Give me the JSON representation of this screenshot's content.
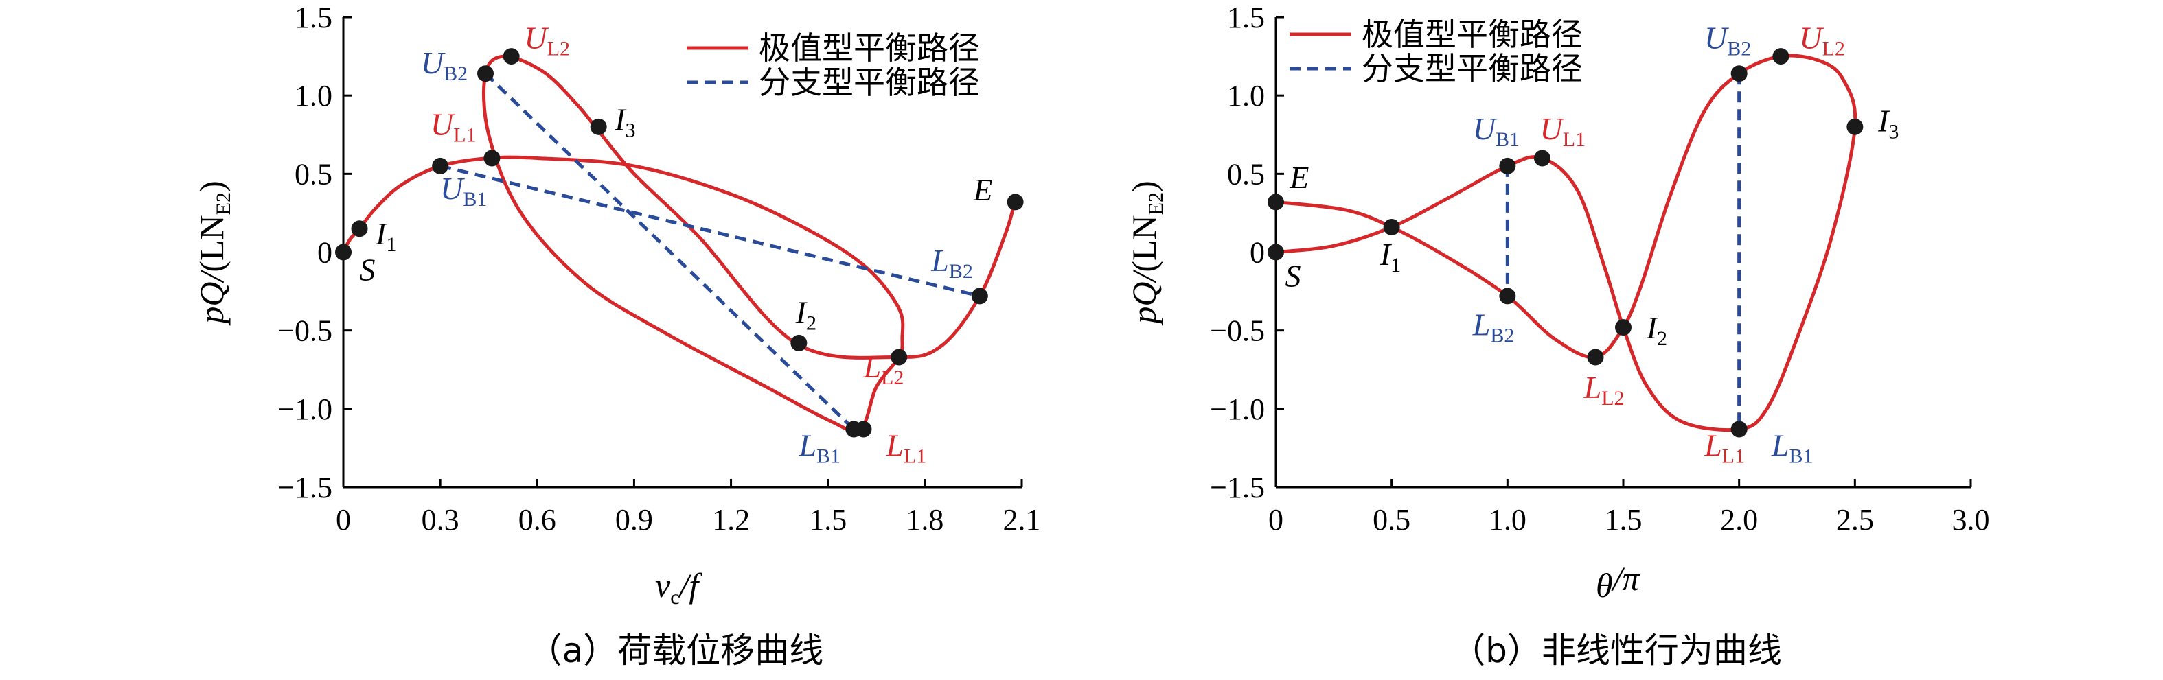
{
  "chart_data": [
    {
      "type": "line",
      "caption": "（a）荷载位移曲线",
      "xlabel_main": "v",
      "xlabel_sub": "c",
      "xlabel_tail": "/f",
      "ylabel_main": "pQ/",
      "ylabel_paren": "(LN",
      "ylabel_sub": "E2",
      "ylabel_close": ")",
      "xlim": [
        0,
        2.1
      ],
      "ylim": [
        -1.5,
        1.5
      ],
      "xticks": [
        "0",
        "0.3",
        "0.6",
        "0.9",
        "1.2",
        "1.5",
        "1.8",
        "2.1"
      ],
      "yticks": [
        "1.5",
        "1.0",
        "0.5",
        "0",
        "−0.5",
        "−1.0",
        "−1.5"
      ],
      "legend": [
        "极值型平衡路径",
        "分支型平衡路径"
      ],
      "series": [
        {
          "name": "极值型平衡路径",
          "style": "solid",
          "points": [
            [
              0,
              0
            ],
            [
              0.02,
              0.08
            ],
            [
              0.05,
              0.15
            ],
            [
              0.1,
              0.28
            ],
            [
              0.18,
              0.43
            ],
            [
              0.3,
              0.55
            ],
            [
              0.45,
              0.6
            ],
            [
              0.6,
              0.6
            ],
            [
              0.9,
              0.55
            ],
            [
              1.2,
              0.37
            ],
            [
              1.45,
              0.13
            ],
            [
              1.62,
              -0.1
            ],
            [
              1.72,
              -0.36
            ],
            [
              1.73,
              -0.55
            ],
            [
              1.72,
              -0.67
            ],
            [
              1.65,
              -0.86
            ],
            [
              1.6,
              -1.13
            ],
            [
              1.5,
              -1.07
            ],
            [
              1.3,
              -0.85
            ],
            [
              1.0,
              -0.52
            ],
            [
              0.75,
              -0.2
            ],
            [
              0.55,
              0.25
            ],
            [
              0.45,
              0.75
            ],
            [
              0.44,
              1.14
            ],
            [
              0.5,
              1.25
            ],
            [
              0.62,
              1.15
            ],
            [
              0.72,
              0.95
            ],
            [
              0.78,
              0.8
            ],
            [
              0.9,
              0.5
            ],
            [
              1.1,
              0.1
            ],
            [
              1.4,
              -0.58
            ],
            [
              1.71,
              -0.67
            ],
            [
              1.85,
              -0.6
            ],
            [
              1.97,
              -0.28
            ],
            [
              2.05,
              0.12
            ],
            [
              2.08,
              0.32
            ],
            [
              2.1,
              0.35
            ]
          ]
        },
        {
          "name": "分支型平衡路径",
          "style": "dashed",
          "segments": [
            [
              [
                0.3,
                0.55
              ],
              [
                1.97,
                -0.28
              ]
            ],
            [
              [
                0.44,
                1.14
              ],
              [
                1.58,
                -1.13
              ]
            ]
          ]
        }
      ],
      "markers": [
        [
          0,
          0
        ],
        [
          0.05,
          0.15
        ],
        [
          0.3,
          0.55
        ],
        [
          0.46,
          0.6
        ],
        [
          0.44,
          1.14
        ],
        [
          0.52,
          1.25
        ],
        [
          0.79,
          0.8
        ],
        [
          1.41,
          -0.58
        ],
        [
          1.72,
          -0.67
        ],
        [
          1.97,
          -0.28
        ],
        [
          2.08,
          0.32
        ],
        [
          1.58,
          -1.13
        ],
        [
          1.61,
          -1.13
        ]
      ],
      "labels": [
        {
          "main": "U",
          "sub": "L2",
          "x": 0.56,
          "y": 1.3,
          "color": "#d6282b"
        },
        {
          "main": "U",
          "sub": "B2",
          "x": 0.24,
          "y": 1.14,
          "color": "#2a4a9a"
        },
        {
          "main": "I",
          "sub": "3",
          "x": 0.84,
          "y": 0.78,
          "color": "#000000"
        },
        {
          "main": "U",
          "sub": "L1",
          "x": 0.27,
          "y": 0.75,
          "color": "#d6282b"
        },
        {
          "main": "U",
          "sub": "B1",
          "x": 0.3,
          "y": 0.34,
          "color": "#2a4a9a"
        },
        {
          "main": "I",
          "sub": "1",
          "x": 0.1,
          "y": 0.05,
          "color": "#000000"
        },
        {
          "main": "S",
          "sub": "",
          "x": 0.05,
          "y": -0.18,
          "color": "#000000"
        },
        {
          "main": "E",
          "sub": "",
          "x": 1.95,
          "y": 0.33,
          "color": "#000000"
        },
        {
          "main": "L",
          "sub": "B2",
          "x": 1.82,
          "y": -0.12,
          "color": "#2a4a9a"
        },
        {
          "main": "I",
          "sub": "2",
          "x": 1.4,
          "y": -0.45,
          "color": "#000000"
        },
        {
          "main": "L",
          "sub": "L2",
          "x": 1.61,
          "y": -0.8,
          "color": "#d6282b"
        },
        {
          "main": "L",
          "sub": "B1",
          "x": 1.41,
          "y": -1.3,
          "color": "#2a4a9a"
        },
        {
          "main": "L",
          "sub": "L1",
          "x": 1.68,
          "y": -1.3,
          "color": "#d6282b"
        }
      ]
    },
    {
      "type": "line",
      "caption": "（b）非线性行为曲线",
      "xlabel_main": "θ",
      "xlabel_sub": "",
      "xlabel_tail": "/π",
      "ylabel_main": "pQ/",
      "ylabel_paren": "(LN",
      "ylabel_sub": "E2",
      "ylabel_close": ")",
      "xlim": [
        0,
        3.0
      ],
      "ylim": [
        -1.5,
        1.5
      ],
      "xticks": [
        "0",
        "0.5",
        "1.0",
        "1.5",
        "2.0",
        "2.5",
        "3.0"
      ],
      "yticks": [
        "1.5",
        "1.0",
        "0.5",
        "0",
        "−0.5",
        "−1.0",
        "−1.5"
      ],
      "legend": [
        "极值型平衡路径",
        "分支型平衡路径"
      ],
      "series": [
        {
          "name": "极值型平衡路径",
          "style": "solid",
          "points": [
            [
              0,
              0
            ],
            [
              0.25,
              0.04
            ],
            [
              0.5,
              0.16
            ],
            [
              0.75,
              0.35
            ],
            [
              1.0,
              0.55
            ],
            [
              1.15,
              0.6
            ],
            [
              1.3,
              0.4
            ],
            [
              1.42,
              -0.1
            ],
            [
              1.5,
              -0.48
            ],
            [
              1.6,
              -0.85
            ],
            [
              1.75,
              -1.08
            ],
            [
              2.0,
              -1.13
            ],
            [
              2.12,
              -1.0
            ],
            [
              2.25,
              -0.55
            ],
            [
              2.4,
              0.1
            ],
            [
              2.5,
              0.8
            ],
            [
              2.45,
              1.1
            ],
            [
              2.35,
              1.22
            ],
            [
              2.18,
              1.25
            ],
            [
              2.0,
              1.14
            ],
            [
              1.85,
              0.9
            ],
            [
              1.7,
              0.35
            ],
            [
              1.58,
              -0.2
            ],
            [
              1.5,
              -0.48
            ],
            [
              1.38,
              -0.67
            ],
            [
              1.2,
              -0.55
            ],
            [
              1.0,
              -0.28
            ],
            [
              0.75,
              -0.04
            ],
            [
              0.5,
              0.16
            ],
            [
              0.3,
              0.27
            ],
            [
              0,
              0.32
            ]
          ]
        },
        {
          "name": "分支型平衡路径",
          "style": "dashed",
          "segments": [
            [
              [
                1.0,
                0.55
              ],
              [
                1.0,
                -0.28
              ]
            ],
            [
              [
                2.0,
                1.14
              ],
              [
                2.0,
                -1.13
              ]
            ]
          ]
        }
      ],
      "markers": [
        [
          0,
          0
        ],
        [
          0,
          0.32
        ],
        [
          0.5,
          0.16
        ],
        [
          1.0,
          0.55
        ],
        [
          1.15,
          0.6
        ],
        [
          1.0,
          -0.28
        ],
        [
          1.5,
          -0.48
        ],
        [
          1.38,
          -0.67
        ],
        [
          2.0,
          -1.13
        ],
        [
          2.0,
          1.14
        ],
        [
          2.18,
          1.25
        ],
        [
          2.5,
          0.8
        ]
      ],
      "labels": [
        {
          "main": "E",
          "sub": "",
          "x": 0.06,
          "y": 0.41,
          "color": "#000000"
        },
        {
          "main": "S",
          "sub": "",
          "x": 0.04,
          "y": -0.22,
          "color": "#000000"
        },
        {
          "main": "I",
          "sub": "1",
          "x": 0.45,
          "y": -0.08,
          "color": "#000000"
        },
        {
          "main": "U",
          "sub": "B1",
          "x": 0.85,
          "y": 0.72,
          "color": "#2a4a9a"
        },
        {
          "main": "U",
          "sub": "L1",
          "x": 1.14,
          "y": 0.72,
          "color": "#d6282b"
        },
        {
          "main": "L",
          "sub": "B2",
          "x": 0.85,
          "y": -0.53,
          "color": "#2a4a9a"
        },
        {
          "main": "I",
          "sub": "2",
          "x": 1.6,
          "y": -0.55,
          "color": "#000000"
        },
        {
          "main": "L",
          "sub": "L2",
          "x": 1.33,
          "y": -0.93,
          "color": "#d6282b"
        },
        {
          "main": "L",
          "sub": "L1",
          "x": 1.85,
          "y": -1.3,
          "color": "#d6282b"
        },
        {
          "main": "L",
          "sub": "B1",
          "x": 2.14,
          "y": -1.3,
          "color": "#2a4a9a"
        },
        {
          "main": "U",
          "sub": "B2",
          "x": 1.85,
          "y": 1.3,
          "color": "#2a4a9a"
        },
        {
          "main": "U",
          "sub": "L2",
          "x": 2.26,
          "y": 1.3,
          "color": "#d6282b"
        },
        {
          "main": "I",
          "sub": "3",
          "x": 2.6,
          "y": 0.77,
          "color": "#000000"
        }
      ]
    }
  ],
  "colors": {
    "extremum": "#d6282b",
    "bifurcation": "#2a4a9a",
    "marker": "#1a1a1a"
  }
}
